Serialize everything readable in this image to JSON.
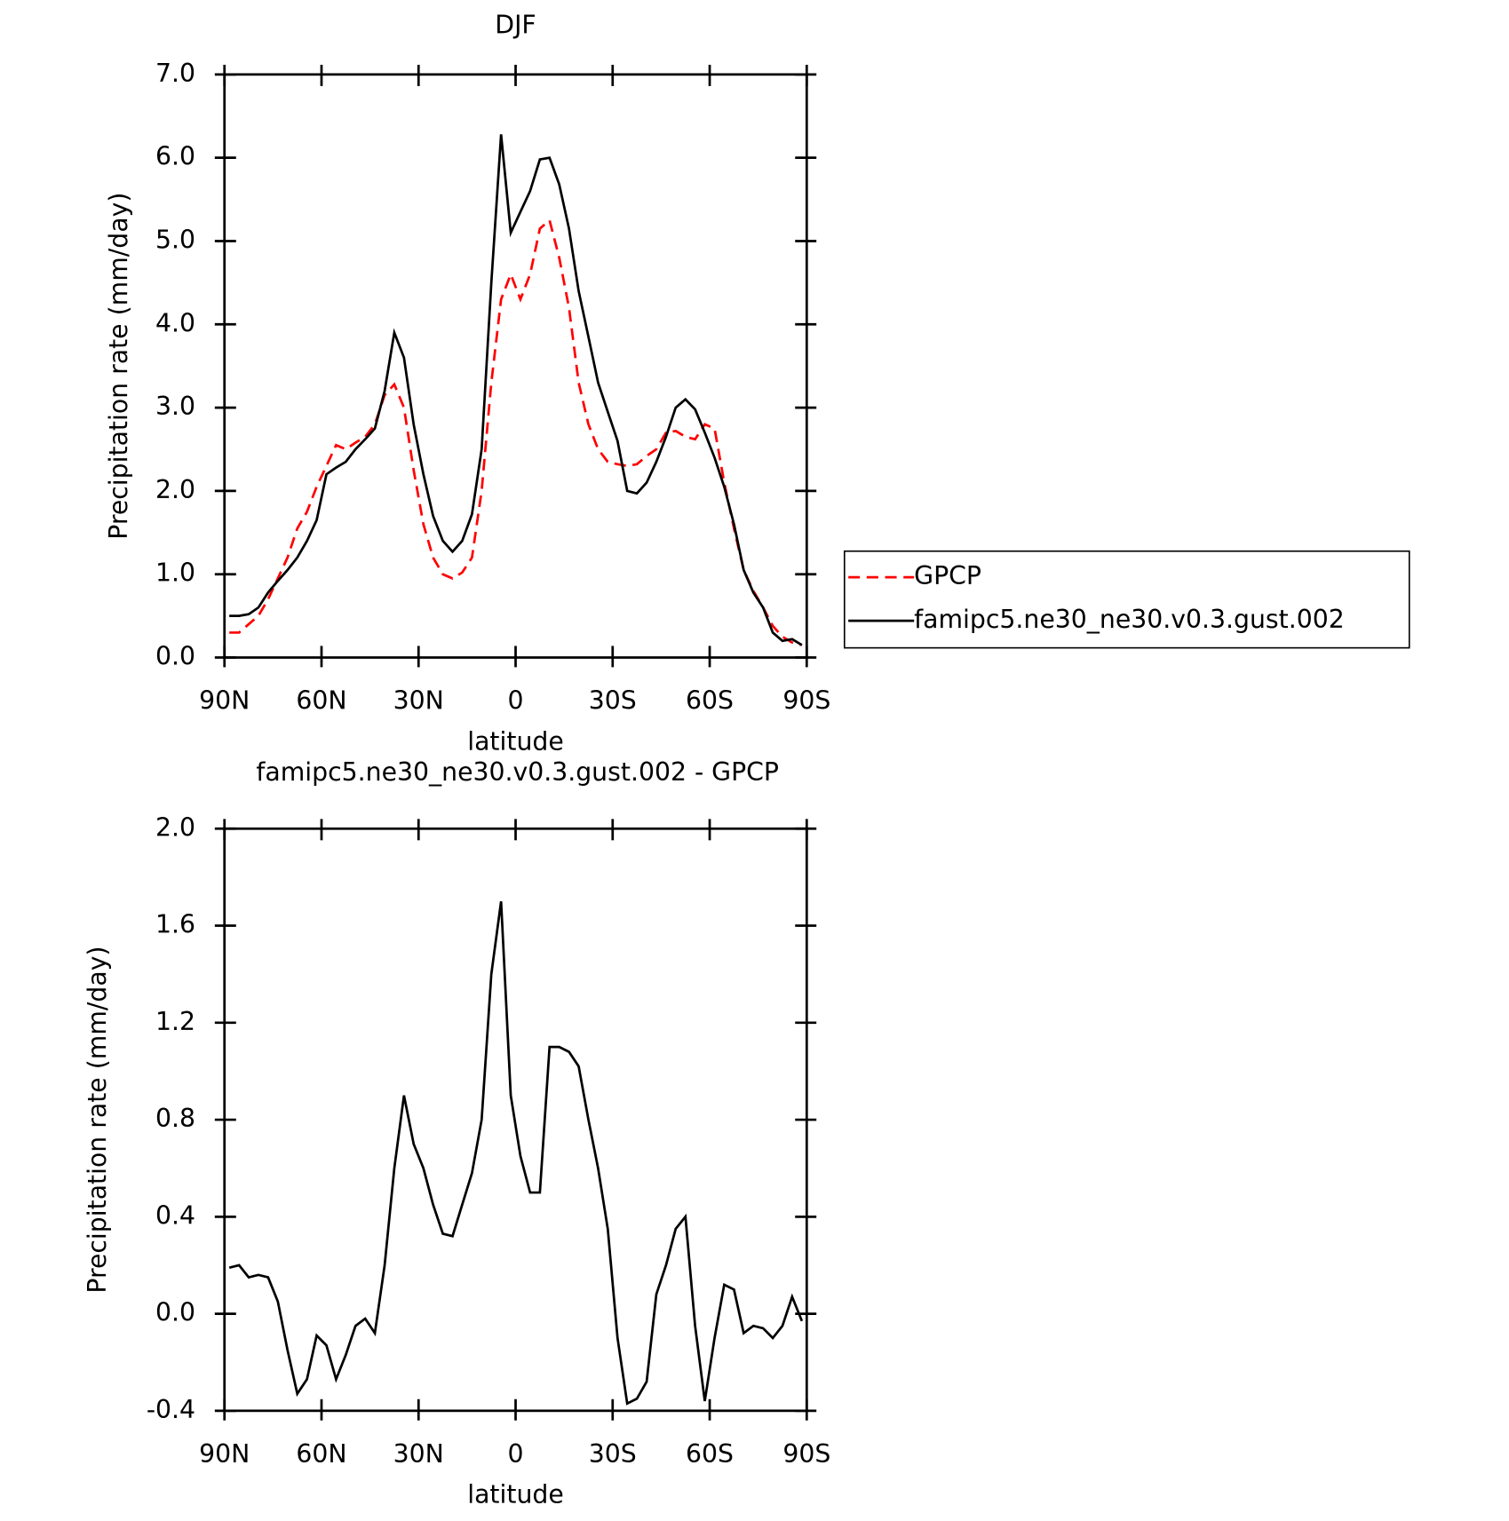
{
  "chart_data": [
    {
      "type": "line",
      "title": "DJF",
      "x_label": "latitude",
      "y_label": "Precipitation rate (mm/day)",
      "x": [
        88.5,
        85.5,
        82.5,
        79.5,
        76.5,
        73.5,
        70.5,
        67.5,
        64.5,
        61.5,
        58.5,
        55.5,
        52.5,
        49.5,
        46.5,
        43.5,
        40.5,
        37.5,
        34.5,
        31.5,
        28.5,
        25.5,
        22.5,
        19.5,
        16.5,
        13.5,
        10.5,
        7.5,
        4.5,
        1.5,
        -1.5,
        -4.5,
        -7.5,
        -10.5,
        -13.5,
        -16.5,
        -19.5,
        -22.5,
        -25.5,
        -28.5,
        -31.5,
        -34.5,
        -37.5,
        -40.5,
        -43.5,
        -46.5,
        -49.5,
        -52.5,
        -55.5,
        -58.5,
        -61.5,
        -64.5,
        -67.5,
        -70.5,
        -73.5,
        -76.5,
        -79.5,
        -82.5,
        -85.5,
        -88.5
      ],
      "series": [
        {
          "name": "GPCP",
          "color": "#ff0000",
          "line_style": "dashed",
          "values": [
            0.3,
            0.3,
            0.4,
            0.5,
            0.7,
            0.95,
            1.2,
            1.55,
            1.75,
            2.05,
            2.3,
            2.55,
            2.5,
            2.58,
            2.65,
            2.8,
            3.15,
            3.28,
            3.0,
            2.25,
            1.6,
            1.2,
            1.0,
            0.95,
            1.02,
            1.2,
            2.0,
            3.3,
            4.3,
            4.6,
            4.3,
            4.6,
            5.15,
            5.25,
            4.8,
            4.2,
            3.3,
            2.8,
            2.5,
            2.35,
            2.32,
            2.3,
            2.32,
            2.42,
            2.5,
            2.7,
            2.72,
            2.65,
            2.62,
            2.8,
            2.75,
            2.1,
            1.55,
            1.05,
            0.8,
            0.6,
            0.38,
            0.25,
            0.18,
            0.15
          ]
        },
        {
          "name": "famipc5.ne30_ne30.v0.3.gust.002",
          "color": "#000000",
          "line_style": "solid",
          "values": [
            0.5,
            0.5,
            0.52,
            0.6,
            0.78,
            0.92,
            1.05,
            1.2,
            1.4,
            1.65,
            2.2,
            2.28,
            2.35,
            2.5,
            2.62,
            2.75,
            3.2,
            3.9,
            3.6,
            2.8,
            2.2,
            1.7,
            1.4,
            1.27,
            1.4,
            1.72,
            2.5,
            4.5,
            6.28,
            5.1,
            5.35,
            5.6,
            5.98,
            6.0,
            5.68,
            5.15,
            4.4,
            3.85,
            3.3,
            2.95,
            2.6,
            2.0,
            1.97,
            2.1,
            2.35,
            2.65,
            3.0,
            3.1,
            2.98,
            2.7,
            2.4,
            2.05,
            1.6,
            1.05,
            0.78,
            0.6,
            0.3,
            0.2,
            0.22,
            0.15
          ]
        }
      ],
      "xlim": [
        90,
        -90
      ],
      "xticks": [
        {
          "value": 90,
          "label": "90N"
        },
        {
          "value": 60,
          "label": "60N"
        },
        {
          "value": 30,
          "label": "30N"
        },
        0,
        {
          "value": -30,
          "label": "30S"
        },
        {
          "value": -60,
          "label": "60S"
        },
        {
          "value": -90,
          "label": "90S"
        }
      ],
      "ylim": [
        0,
        7
      ],
      "yticks": [
        {
          "value": 0,
          "label": "0.0"
        },
        {
          "value": 1,
          "label": "1.0"
        },
        {
          "value": 2,
          "label": "2.0"
        },
        {
          "value": 3,
          "label": "3.0"
        },
        {
          "value": 4,
          "label": "4.0"
        },
        {
          "value": 5,
          "label": "5.0"
        },
        {
          "value": 6,
          "label": "6.0"
        },
        {
          "value": 7,
          "label": "7.0"
        }
      ],
      "legend": "right"
    },
    {
      "type": "line",
      "title": "famipc5.ne30_ne30.v0.3.gust.002 - GPCP",
      "x_label": "latitude",
      "y_label": "Precipitation rate (mm/day)",
      "x": [
        88.5,
        85.5,
        82.5,
        79.5,
        76.5,
        73.5,
        70.5,
        67.5,
        64.5,
        61.5,
        58.5,
        55.5,
        52.5,
        49.5,
        46.5,
        43.5,
        40.5,
        37.5,
        34.5,
        31.5,
        28.5,
        25.5,
        22.5,
        19.5,
        16.5,
        13.5,
        10.5,
        7.5,
        4.5,
        1.5,
        -1.5,
        -4.5,
        -7.5,
        -10.5,
        -13.5,
        -16.5,
        -19.5,
        -22.5,
        -25.5,
        -28.5,
        -31.5,
        -34.5,
        -37.5,
        -40.5,
        -43.5,
        -46.5,
        -49.5,
        -52.5,
        -55.5,
        -58.5,
        -61.5,
        -64.5,
        -67.5,
        -70.5,
        -73.5,
        -76.5,
        -79.5,
        -82.5,
        -85.5,
        -88.5
      ],
      "series": [
        {
          "color": "#000000",
          "line_style": "solid",
          "values": [
            0.19,
            0.2,
            0.15,
            0.16,
            0.15,
            0.05,
            -0.15,
            -0.33,
            -0.27,
            -0.09,
            -0.13,
            -0.27,
            -0.17,
            -0.05,
            -0.02,
            -0.08,
            0.2,
            0.6,
            0.9,
            0.7,
            0.6,
            0.45,
            0.33,
            0.32,
            0.45,
            0.58,
            0.8,
            1.4,
            1.7,
            0.9,
            0.65,
            0.5,
            0.5,
            1.1,
            1.1,
            1.08,
            1.02,
            0.8,
            0.6,
            0.35,
            -0.1,
            -0.37,
            -0.35,
            -0.28,
            0.08,
            0.2,
            0.35,
            0.4,
            -0.05,
            -0.36,
            -0.1,
            0.12,
            0.1,
            -0.08,
            -0.05,
            -0.06,
            -0.1,
            -0.05,
            0.07,
            -0.03
          ]
        }
      ],
      "xlim": [
        90,
        -90
      ],
      "xticks": [
        {
          "value": 90,
          "label": "90N"
        },
        {
          "value": 60,
          "label": "60N"
        },
        {
          "value": 30,
          "label": "30N"
        },
        0,
        {
          "value": -30,
          "label": "30S"
        },
        {
          "value": -60,
          "label": "60S"
        },
        {
          "value": -90,
          "label": "90S"
        }
      ],
      "ylim": [
        -0.4,
        2.0
      ],
      "yticks": [
        {
          "value": -0.4,
          "label": "-0.4"
        },
        {
          "value": 0,
          "label": "0.0"
        },
        0.4,
        0.8,
        1.2,
        1.6,
        {
          "value": 2.0,
          "label": "2.0"
        }
      ]
    }
  ]
}
